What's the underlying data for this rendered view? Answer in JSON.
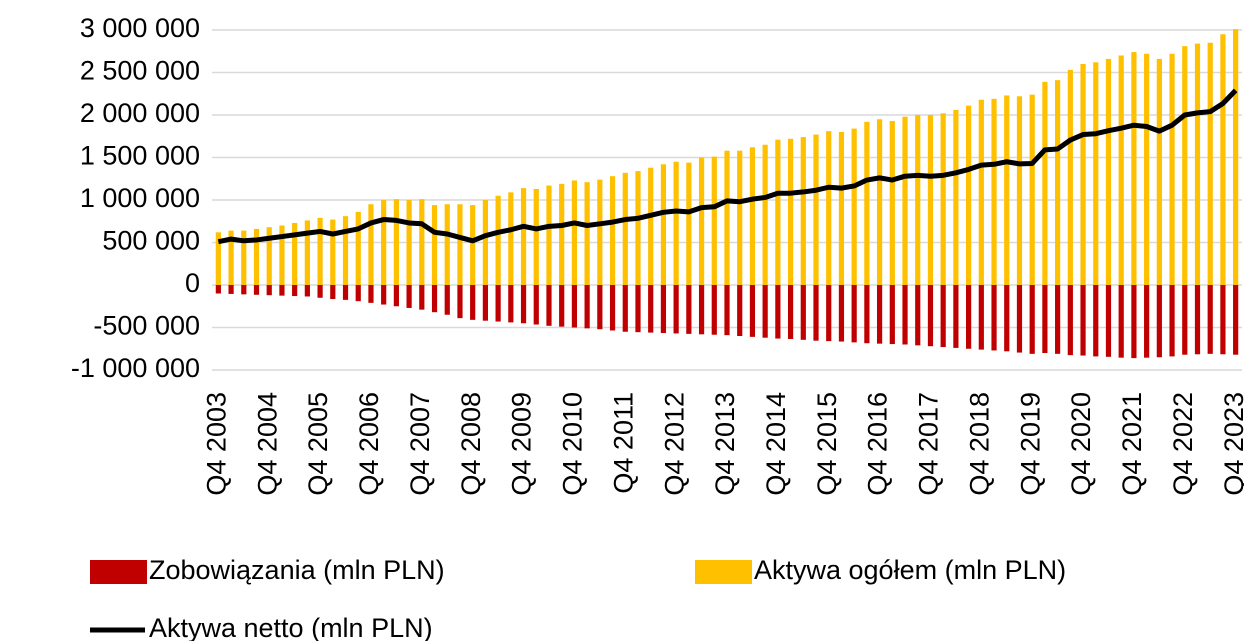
{
  "chart_data": {
    "type": "bar",
    "categories": [
      "Q4 2003",
      null,
      null,
      null,
      "Q4 2004",
      null,
      null,
      null,
      "Q4 2005",
      null,
      null,
      null,
      "Q4 2006",
      null,
      null,
      null,
      "Q4 2007",
      null,
      null,
      null,
      "Q4 2008",
      null,
      null,
      null,
      "Q4 2009",
      null,
      null,
      null,
      "Q4 2010",
      null,
      null,
      null,
      "Q4 2011",
      null,
      null,
      null,
      "Q4 2012",
      null,
      null,
      null,
      "Q4 2013",
      null,
      null,
      null,
      "Q4 2014",
      null,
      null,
      null,
      "Q4 2015",
      null,
      null,
      null,
      "Q4 2016",
      null,
      null,
      null,
      "Q4 2017",
      null,
      null,
      null,
      "Q4 2018",
      null,
      null,
      null,
      "Q4 2019",
      null,
      null,
      null,
      "Q4 2020",
      null,
      null,
      null,
      "Q4 2021",
      null,
      null,
      null,
      "Q4 2022",
      null,
      null,
      null,
      "Q4 2023"
    ],
    "series": [
      {
        "name": "Zobowiązania (mln PLN)",
        "type": "bar",
        "color": "#c00000",
        "values": [
          -100000,
          -105000,
          -110000,
          -115000,
          -120000,
          -125000,
          -130000,
          -135000,
          -150000,
          -165000,
          -175000,
          -190000,
          -210000,
          -230000,
          -250000,
          -270000,
          -290000,
          -320000,
          -350000,
          -390000,
          -410000,
          -420000,
          -430000,
          -440000,
          -450000,
          -465000,
          -480000,
          -490000,
          -500000,
          -510000,
          -520000,
          -535000,
          -550000,
          -555000,
          -560000,
          -565000,
          -570000,
          -575000,
          -580000,
          -585000,
          -590000,
          -600000,
          -610000,
          -620000,
          -630000,
          -635000,
          -645000,
          -655000,
          -660000,
          -665000,
          -675000,
          -685000,
          -690000,
          -695000,
          -700000,
          -710000,
          -720000,
          -730000,
          -740000,
          -750000,
          -760000,
          -770000,
          -780000,
          -795000,
          -810000,
          -800000,
          -810000,
          -825000,
          -830000,
          -840000,
          -845000,
          -855000,
          -860000,
          -855000,
          -850000,
          -840000,
          -820000,
          -815000,
          -810000,
          -815000,
          -820000
        ]
      },
      {
        "name": "Aktywa ogółem (mln PLN)",
        "type": "bar",
        "color": "#ffc000",
        "values": [
          620000,
          640000,
          640000,
          660000,
          680000,
          700000,
          730000,
          760000,
          790000,
          770000,
          810000,
          860000,
          950000,
          1000000,
          1010000,
          1000000,
          1010000,
          940000,
          950000,
          950000,
          940000,
          1000000,
          1050000,
          1090000,
          1140000,
          1130000,
          1170000,
          1190000,
          1230000,
          1210000,
          1240000,
          1280000,
          1320000,
          1340000,
          1380000,
          1420000,
          1450000,
          1440000,
          1500000,
          1510000,
          1580000,
          1580000,
          1620000,
          1650000,
          1710000,
          1720000,
          1740000,
          1770000,
          1810000,
          1800000,
          1840000,
          1920000,
          1950000,
          1930000,
          1980000,
          2000000,
          2000000,
          2020000,
          2060000,
          2110000,
          2180000,
          2190000,
          2230000,
          2220000,
          2240000,
          2390000,
          2410000,
          2530000,
          2600000,
          2620000,
          2660000,
          2700000,
          2740000,
          2720000,
          2660000,
          2720000,
          2810000,
          2840000,
          2850000,
          2950000,
          3010000
        ]
      },
      {
        "name": "Aktywa netto (mln PLN)",
        "type": "line",
        "color": "#000000",
        "values": [
          510000,
          540000,
          520000,
          530000,
          550000,
          570000,
          590000,
          610000,
          630000,
          600000,
          630000,
          660000,
          730000,
          770000,
          760000,
          730000,
          720000,
          620000,
          600000,
          560000,
          520000,
          580000,
          620000,
          650000,
          690000,
          660000,
          690000,
          700000,
          730000,
          700000,
          720000,
          740000,
          770000,
          785000,
          820000,
          855000,
          870000,
          860000,
          910000,
          920000,
          990000,
          980000,
          1010000,
          1030000,
          1080000,
          1080000,
          1095000,
          1115000,
          1150000,
          1140000,
          1165000,
          1235000,
          1260000,
          1235000,
          1280000,
          1290000,
          1280000,
          1290000,
          1320000,
          1360000,
          1410000,
          1420000,
          1450000,
          1425000,
          1430000,
          1590000,
          1600000,
          1705000,
          1770000,
          1780000,
          1815000,
          1845000,
          1880000,
          1865000,
          1810000,
          1880000,
          2000000,
          2025000,
          2040000,
          2135000,
          2290000
        ]
      }
    ],
    "ylim": [
      -1000000,
      3000000
    ],
    "yticks": [
      {
        "value": -1000000,
        "label": "-1 000 000"
      },
      {
        "value": -500000,
        "label": "-500 000"
      },
      0,
      {
        "value": 500000,
        "label": "500 000"
      },
      {
        "value": 1000000,
        "label": "1 000 000"
      },
      {
        "value": 1500000,
        "label": "1 500 000"
      },
      {
        "value": 2000000,
        "label": "2 000 000"
      },
      {
        "value": 2500000,
        "label": "2 500 000"
      },
      {
        "value": 3000000,
        "label": "3 000 000"
      }
    ],
    "grid": true,
    "legend": "bottom"
  }
}
